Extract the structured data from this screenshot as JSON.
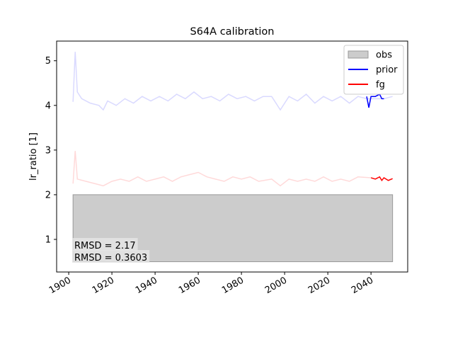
{
  "chart_data": {
    "type": "line",
    "title": "S64A calibration",
    "ylabel": "lr_ratio [1]",
    "xlim": [
      1894.4,
      2057
    ],
    "ylim": [
      0.27,
      5.44
    ],
    "xticks": [
      1900,
      1920,
      1940,
      1960,
      1980,
      2000,
      2020,
      2040
    ],
    "yticks": [
      1,
      2,
      3,
      4,
      5
    ],
    "legend": "upper right",
    "obs": {
      "name": "obs",
      "color": "#cccccc",
      "edgecolor": "#999999",
      "x": [
        1902,
        2050
      ],
      "lower": [
        0.5,
        0.5
      ],
      "upper": [
        2,
        2
      ]
    },
    "series": [
      {
        "color": "#0000ff",
        "alpha": 0.15,
        "x": [
          1902,
          1903,
          1904,
          1906,
          1910,
          1914,
          1916,
          1918,
          1922,
          1926,
          1930,
          1934,
          1938,
          1942,
          1946,
          1950,
          1954,
          1958,
          1962,
          1966,
          1970,
          1974,
          1978,
          1982,
          1986,
          1990,
          1994,
          1998,
          2002,
          2006,
          2010,
          2014,
          2018,
          2022,
          2026,
          2030,
          2034,
          2038,
          2046,
          2050
        ],
        "values": [
          4.08,
          5.2,
          4.3,
          4.15,
          4.05,
          4.0,
          3.9,
          4.1,
          4.0,
          4.15,
          4.05,
          4.2,
          4.1,
          4.2,
          4.1,
          4.25,
          4.15,
          4.3,
          4.15,
          4.2,
          4.1,
          4.25,
          4.15,
          4.2,
          4.1,
          4.2,
          4.2,
          3.9,
          4.2,
          4.1,
          4.25,
          4.05,
          4.2,
          4.1,
          4.2,
          4.05,
          4.2,
          4.15,
          4.15,
          4.2
        ]
      },
      {
        "color": "#ff0000",
        "alpha": 0.15,
        "x": [
          1902,
          1903,
          1904,
          1908,
          1912,
          1916,
          1920,
          1924,
          1928,
          1932,
          1936,
          1940,
          1944,
          1948,
          1952,
          1956,
          1960,
          1964,
          1968,
          1972,
          1976,
          1980,
          1984,
          1988,
          1994,
          1998,
          2002,
          2006,
          2010,
          2014,
          2018,
          2022,
          2026,
          2030,
          2034,
          2040
        ],
        "values": [
          2.25,
          2.98,
          2.35,
          2.3,
          2.25,
          2.2,
          2.3,
          2.35,
          2.3,
          2.4,
          2.3,
          2.35,
          2.4,
          2.3,
          2.4,
          2.45,
          2.5,
          2.4,
          2.35,
          2.3,
          2.4,
          2.35,
          2.4,
          2.3,
          2.35,
          2.2,
          2.35,
          2.3,
          2.35,
          2.3,
          2.4,
          2.3,
          2.35,
          2.3,
          2.4,
          2.38
        ]
      },
      {
        "name": "prior",
        "color": "#0000ff",
        "x": [
          2038,
          2039,
          2040,
          2042,
          2044,
          2045,
          2046
        ],
        "values": [
          4.2,
          3.95,
          4.2,
          4.2,
          4.25,
          4.15,
          4.15
        ]
      },
      {
        "name": "fg",
        "color": "#ff0000",
        "x": [
          2040,
          2042,
          2044,
          2045,
          2046,
          2048,
          2050
        ],
        "values": [
          2.38,
          2.35,
          2.4,
          2.32,
          2.38,
          2.32,
          2.36
        ]
      }
    ],
    "annotations": [
      {
        "text": "RMSD = 2.17",
        "color": "#0000ff"
      },
      {
        "text": "RMSD = 0.3603",
        "color": "#ff0000"
      }
    ]
  }
}
